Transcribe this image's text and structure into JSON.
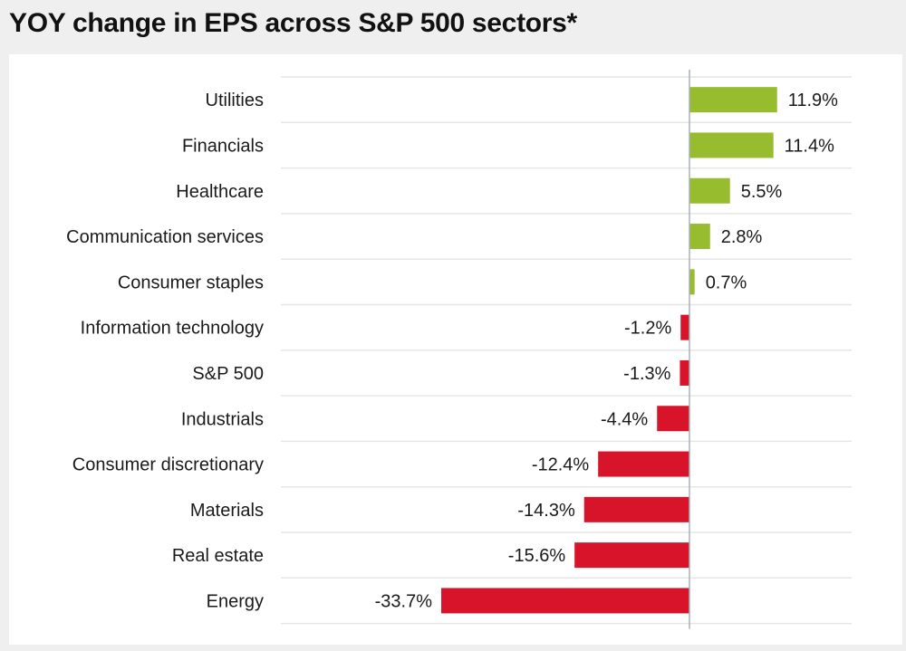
{
  "chart_data": {
    "type": "bar",
    "orientation": "horizontal",
    "title": "YOY change in EPS across S&P 500 sectors*",
    "xlabel": "",
    "ylabel": "",
    "categories": [
      "Utilities",
      "Financials",
      "Healthcare",
      "Communication services",
      "Consumer staples",
      "Information technology",
      "S&P 500",
      "Industrials",
      "Consumer discretionary",
      "Materials",
      "Real estate",
      "Energy"
    ],
    "values": [
      11.9,
      11.4,
      5.5,
      2.8,
      0.7,
      -1.2,
      -1.3,
      -4.4,
      -12.4,
      -14.3,
      -15.6,
      -33.7
    ],
    "value_labels": [
      "11.9%",
      "11.4%",
      "5.5%",
      "2.8%",
      "0.7%",
      "-1.2%",
      "-1.3%",
      "-4.4%",
      "-12.4%",
      "-14.3%",
      "-15.6%",
      "-33.7%"
    ],
    "xlim": [
      -33.7,
      11.9
    ],
    "grid": true,
    "colors": {
      "positive": "#97bd2e",
      "negative": "#d7142a"
    },
    "legend": "none"
  }
}
